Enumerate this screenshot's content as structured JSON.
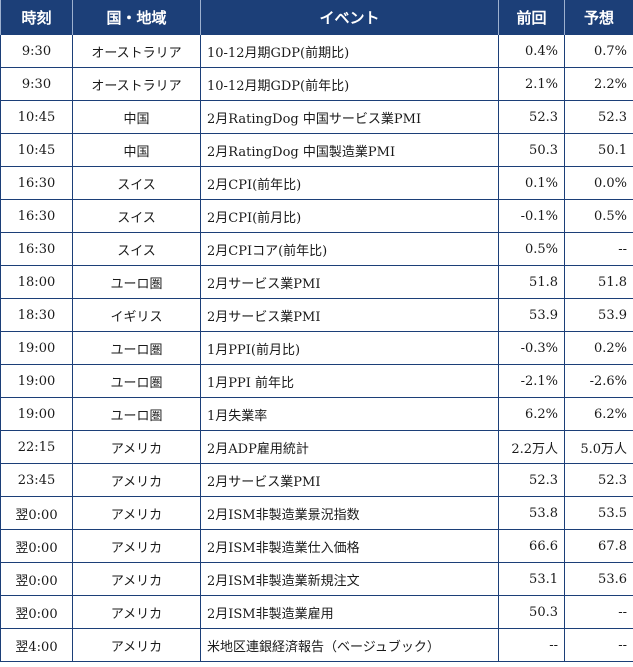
{
  "headers": {
    "time": "時刻",
    "country": "国・地域",
    "event": "イベント",
    "previous": "前回",
    "forecast": "予想"
  },
  "rows": [
    {
      "time": "9:30",
      "country": "オーストラリア",
      "event": "10-12月期GDP(前期比)",
      "previous": "0.4%",
      "forecast": "0.7%"
    },
    {
      "time": "9:30",
      "country": "オーストラリア",
      "event": "10-12月期GDP(前年比)",
      "previous": "2.1%",
      "forecast": "2.2%"
    },
    {
      "time": "10:45",
      "country": "中国",
      "event": "2月RatingDog 中国サービス業PMI",
      "previous": "52.3",
      "forecast": "52.3"
    },
    {
      "time": "10:45",
      "country": "中国",
      "event": "2月RatingDog 中国製造業PMI",
      "previous": "50.3",
      "forecast": "50.1"
    },
    {
      "time": "16:30",
      "country": "スイス",
      "event": "2月CPI(前年比)",
      "previous": "0.1%",
      "forecast": "0.0%"
    },
    {
      "time": "16:30",
      "country": "スイス",
      "event": "2月CPI(前月比)",
      "previous": "-0.1%",
      "forecast": "0.5%"
    },
    {
      "time": "16:30",
      "country": "スイス",
      "event": "2月CPIコア(前年比)",
      "previous": "0.5%",
      "forecast": "--"
    },
    {
      "time": "18:00",
      "country": "ユーロ圏",
      "event": "2月サービス業PMI",
      "previous": "51.8",
      "forecast": "51.8"
    },
    {
      "time": "18:30",
      "country": "イギリス",
      "event": "2月サービス業PMI",
      "previous": "53.9",
      "forecast": "53.9"
    },
    {
      "time": "19:00",
      "country": "ユーロ圏",
      "event": "1月PPI(前月比)",
      "previous": "-0.3%",
      "forecast": "0.2%"
    },
    {
      "time": "19:00",
      "country": "ユーロ圏",
      "event": "1月PPI 前年比",
      "previous": "-2.1%",
      "forecast": "-2.6%"
    },
    {
      "time": "19:00",
      "country": "ユーロ圏",
      "event": "1月失業率",
      "previous": "6.2%",
      "forecast": "6.2%"
    },
    {
      "time": "22:15",
      "country": "アメリカ",
      "event": "2月ADP雇用統計",
      "previous": "2.2万人",
      "forecast": "5.0万人"
    },
    {
      "time": "23:45",
      "country": "アメリカ",
      "event": "2月サービス業PMI",
      "previous": "52.3",
      "forecast": "52.3"
    },
    {
      "time": "翌0:00",
      "country": "アメリカ",
      "event": "2月ISM非製造業景況指数",
      "previous": "53.8",
      "forecast": "53.5"
    },
    {
      "time": "翌0:00",
      "country": "アメリカ",
      "event": "2月ISM非製造業仕入価格",
      "previous": "66.6",
      "forecast": "67.8"
    },
    {
      "time": "翌0:00",
      "country": "アメリカ",
      "event": "2月ISM非製造業新規注文",
      "previous": "53.1",
      "forecast": "53.6"
    },
    {
      "time": "翌0:00",
      "country": "アメリカ",
      "event": "2月ISM非製造業雇用",
      "previous": "50.3",
      "forecast": "--"
    },
    {
      "time": "翌4:00",
      "country": "アメリカ",
      "event": "米地区連銀経済報告（ベージュブック）",
      "previous": "--",
      "forecast": "--"
    }
  ]
}
